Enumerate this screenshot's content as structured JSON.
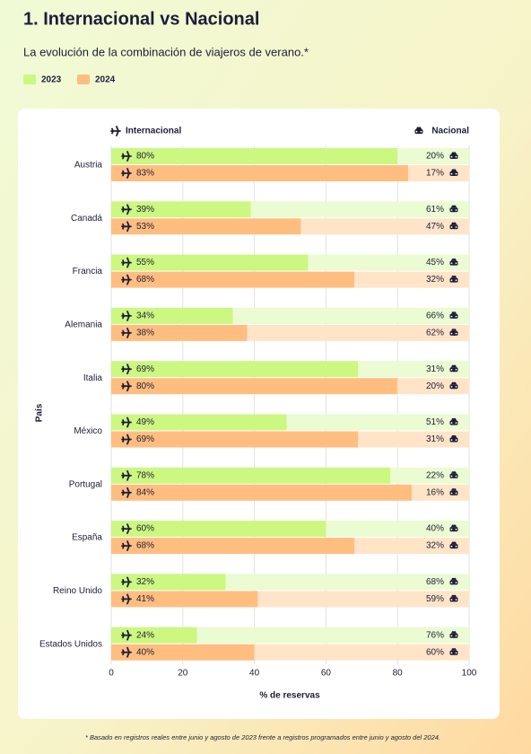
{
  "chart_data": {
    "type": "bar",
    "orientation": "horizontal",
    "title": "1. Internacional vs Nacional",
    "subtitle": "La evolución de la combinación de viajeros de verano.*",
    "left_label": "Internacional",
    "right_label": "Nacional",
    "xlabel": "% de reservas",
    "ylabel": "País",
    "footnote": "* Basado en registros reales entre junio y agosto de 2023 frente a registros programados entre junio y agosto del 2024.",
    "categories": [
      "Austria",
      "Canadá",
      "Francia",
      "Alemania",
      "Italia",
      "México",
      "Portugal",
      "España",
      "Reino Unido",
      "Estados Unidos"
    ],
    "series": [
      {
        "name": "2023",
        "color": "#ccf780",
        "national_color": "#ebfbd2",
        "values": [
          80,
          39,
          55,
          34,
          69,
          49,
          78,
          60,
          32,
          24
        ],
        "value_labels": [
          "80%",
          "39%",
          "55%",
          "34%",
          "69%",
          "49%",
          "78%",
          "60%",
          "32%",
          "24%"
        ],
        "national_values": [
          20,
          61,
          45,
          66,
          31,
          51,
          22,
          40,
          68,
          76
        ],
        "national_value_labels": [
          "20%",
          "61%",
          "45%",
          "66%",
          "31%",
          "51%",
          "22%",
          "40%",
          "68%",
          "76%"
        ]
      },
      {
        "name": "2024",
        "color": "#ffbe80",
        "national_color": "#ffe4c8",
        "values": [
          83,
          53,
          68,
          38,
          80,
          69,
          84,
          68,
          41,
          40
        ],
        "value_labels": [
          "83%",
          "53%",
          "68%",
          "38%",
          "80%",
          "69%",
          "84%",
          "68%",
          "41%",
          "40%"
        ],
        "national_values": [
          17,
          47,
          32,
          62,
          20,
          31,
          16,
          32,
          59,
          60
        ],
        "national_value_labels": [
          "17%",
          "47%",
          "32%",
          "62%",
          "20%",
          "31%",
          "16%",
          "32%",
          "59%",
          "60%"
        ]
      }
    ],
    "xlim": [
      0,
      100
    ],
    "xticks": [
      0,
      20,
      40,
      60,
      80,
      100
    ],
    "grid": true
  }
}
